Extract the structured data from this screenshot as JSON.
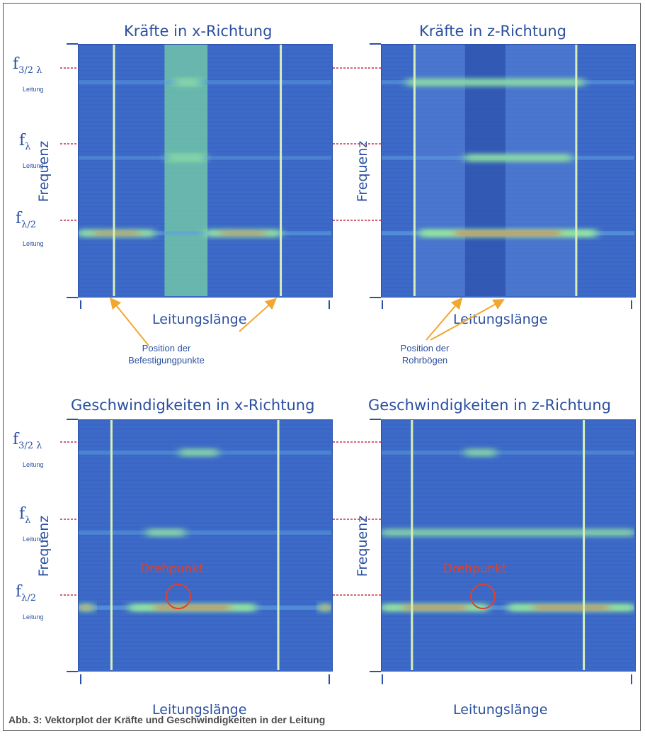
{
  "caption": "Abb. 3: Vektorplot der Kräfte und Geschwindigkeiten in der Leitung",
  "freq_labels": [
    {
      "main": "f",
      "sub": "3/2 λ",
      "note": "Leitung"
    },
    {
      "main": "f",
      "sub": "λ",
      "note": "Leitung"
    },
    {
      "main": "f",
      "sub": "λ/2",
      "note": "Leitung"
    }
  ],
  "annotations": {
    "befestigung": "Position der\nBefestigungpunkte",
    "rohrboegen": "Position der\nRohrbögen",
    "drehpunkt": "Drehpunkt"
  },
  "colors": {
    "background": "#3d6ac8",
    "frame": "#2c4fa8",
    "hot": "#e06a3a",
    "green": "#7fe0a0",
    "arrow": "#f0a830",
    "ref_line": "#c0304a",
    "drehpunkt": "#e2402a"
  },
  "chart_data": [
    {
      "type": "heatmap",
      "title": "Kräfte in x-Richtung",
      "xlabel": "Leitungslänge",
      "ylabel": "Frequenz",
      "structural_lines_x": [
        0.14,
        0.8
      ],
      "highlight_band_x": [
        0.34,
        0.51
      ],
      "resonances": [
        {
          "freq": "f3/2λ",
          "y": 0.15,
          "intensity": 0.35,
          "hot_spans": [
            [
              0.38,
              0.48
            ]
          ]
        },
        {
          "freq": "fλ",
          "y": 0.45,
          "intensity": 0.3,
          "hot_spans": [
            [
              0.35,
              0.5
            ]
          ]
        },
        {
          "freq": "fλ/2",
          "y": 0.75,
          "intensity": 0.7,
          "hot_spans": [
            [
              0.0,
              0.3
            ],
            [
              0.5,
              0.8
            ]
          ]
        }
      ]
    },
    {
      "type": "heatmap",
      "title": "Kräfte in z-Richtung",
      "xlabel": "Leitungslänge",
      "ylabel": "Frequenz",
      "structural_lines_x": [
        0.13,
        0.77
      ],
      "bend_positions_x": [
        0.33,
        0.49
      ],
      "resonances": [
        {
          "freq": "f3/2λ",
          "y": 0.15,
          "intensity": 0.5,
          "hot_spans": [
            [
              0.1,
              0.8
            ]
          ]
        },
        {
          "freq": "fλ",
          "y": 0.45,
          "intensity": 0.55,
          "hot_spans": [
            [
              0.33,
              0.75
            ]
          ]
        },
        {
          "freq": "fλ/2",
          "y": 0.75,
          "intensity": 1.0,
          "hot_spans": [
            [
              0.15,
              0.85
            ]
          ]
        }
      ]
    },
    {
      "type": "heatmap",
      "title": "Geschwindigkeiten in x-Richtung",
      "xlabel": "Leitungslänge",
      "ylabel": "Frequenz",
      "structural_lines_x": [
        0.13,
        0.79
      ],
      "resonances": [
        {
          "freq": "f3/2λ",
          "y": 0.13,
          "intensity": 0.35,
          "hot_spans": [
            [
              0.4,
              0.55
            ]
          ]
        },
        {
          "freq": "fλ",
          "y": 0.45,
          "intensity": 0.4,
          "hot_spans": [
            [
              0.27,
              0.42
            ]
          ]
        },
        {
          "freq": "fλ/2",
          "y": 0.75,
          "intensity": 0.95,
          "hot_spans": [
            [
              0.0,
              0.06
            ],
            [
              0.2,
              0.7
            ],
            [
              0.95,
              1.0
            ]
          ]
        }
      ],
      "drehpunkt_x": 0.39
    },
    {
      "type": "heatmap",
      "title": "Geschwindigkeiten in z-Richtung",
      "xlabel": "Leitungslänge",
      "ylabel": "Frequenz",
      "structural_lines_x": [
        0.12,
        0.8
      ],
      "resonances": [
        {
          "freq": "f3/2λ",
          "y": 0.13,
          "intensity": 0.3,
          "hot_spans": [
            [
              0.33,
              0.45
            ]
          ]
        },
        {
          "freq": "fλ",
          "y": 0.45,
          "intensity": 0.25,
          "hot_spans": [
            [
              0.0,
              1.0
            ]
          ]
        },
        {
          "freq": "fλ/2",
          "y": 0.75,
          "intensity": 0.9,
          "hot_spans": [
            [
              0.0,
              0.42
            ],
            [
              0.5,
              1.0
            ]
          ]
        }
      ],
      "drehpunkt_x": 0.41
    }
  ]
}
